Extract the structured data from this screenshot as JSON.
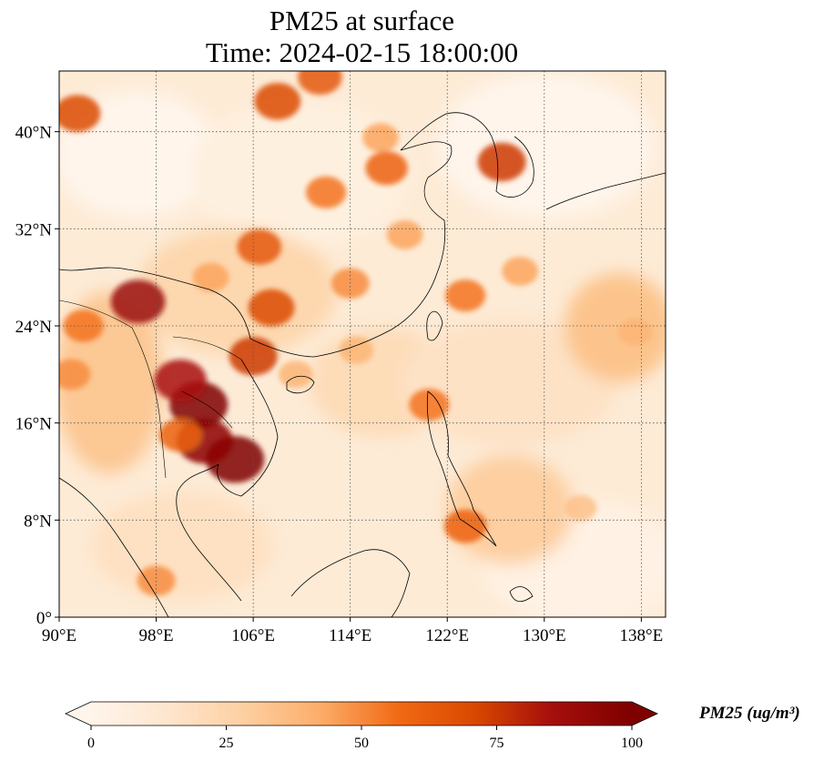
{
  "title": {
    "line1": "PM25 at surface",
    "line2": "Time: 2024-02-15 18:00:00"
  },
  "map": {
    "extent": {
      "lon_min": 90,
      "lon_max": 140,
      "lat_min": 0,
      "lat_max": 45
    },
    "lat_ticks": [
      {
        "value": 40,
        "label": "40°N"
      },
      {
        "value": 32,
        "label": "32°N"
      },
      {
        "value": 24,
        "label": "24°N"
      },
      {
        "value": 16,
        "label": "16°N"
      },
      {
        "value": 8,
        "label": "8°N"
      },
      {
        "value": 0,
        "label": "0°"
      }
    ],
    "lon_ticks": [
      {
        "value": 90,
        "label": "90°E"
      },
      {
        "value": 98,
        "label": "98°E"
      },
      {
        "value": 106,
        "label": "106°E"
      },
      {
        "value": 114,
        "label": "114°E"
      },
      {
        "value": 122,
        "label": "122°E"
      },
      {
        "value": 130,
        "label": "130°E"
      },
      {
        "value": 138,
        "label": "138°E"
      }
    ],
    "gridlines": "dotted",
    "variable": "PM25",
    "hotspots_lonlat_value": [
      [
        101.5,
        17.5,
        100
      ],
      [
        104.5,
        13.0,
        100
      ],
      [
        102.0,
        14.5,
        95
      ],
      [
        96.5,
        26.0,
        90
      ],
      [
        100.0,
        19.5,
        85
      ],
      [
        106.0,
        21.5,
        75
      ],
      [
        107.5,
        25.5,
        70
      ],
      [
        106.5,
        30.5,
        65
      ],
      [
        117.0,
        37.0,
        60
      ],
      [
        112.0,
        35.0,
        55
      ],
      [
        108.0,
        42.5,
        70
      ],
      [
        111.5,
        44.5,
        65
      ],
      [
        91.5,
        41.5,
        70
      ],
      [
        126.5,
        37.5,
        75
      ],
      [
        123.5,
        26.5,
        55
      ],
      [
        128.0,
        28.5,
        45
      ],
      [
        120.5,
        17.5,
        55
      ],
      [
        123.5,
        7.5,
        60
      ],
      [
        91.0,
        20.0,
        50
      ],
      [
        92.0,
        24.0,
        55
      ],
      [
        114.0,
        27.5,
        50
      ],
      [
        118.5,
        31.5,
        45
      ],
      [
        109.5,
        20.0,
        40
      ],
      [
        98.0,
        3.0,
        50
      ],
      [
        102.5,
        28.0,
        45
      ],
      [
        100.0,
        15.0,
        60
      ],
      [
        114.5,
        22.0,
        40
      ],
      [
        137.5,
        23.5,
        40
      ],
      [
        133.0,
        9.0,
        35
      ],
      [
        116.5,
        39.5,
        45
      ]
    ]
  },
  "colorbar": {
    "min": 0,
    "max": 100,
    "extend": "both",
    "ticks": [
      "0",
      "25",
      "50",
      "75",
      "100"
    ],
    "colors": [
      "#fff5eb",
      "#fee6ce",
      "#fdd0a2",
      "#fdae6b",
      "#f16913",
      "#d94801",
      "#a60f0c",
      "#7f0000"
    ],
    "label": "PM25 (ug/m³)"
  }
}
